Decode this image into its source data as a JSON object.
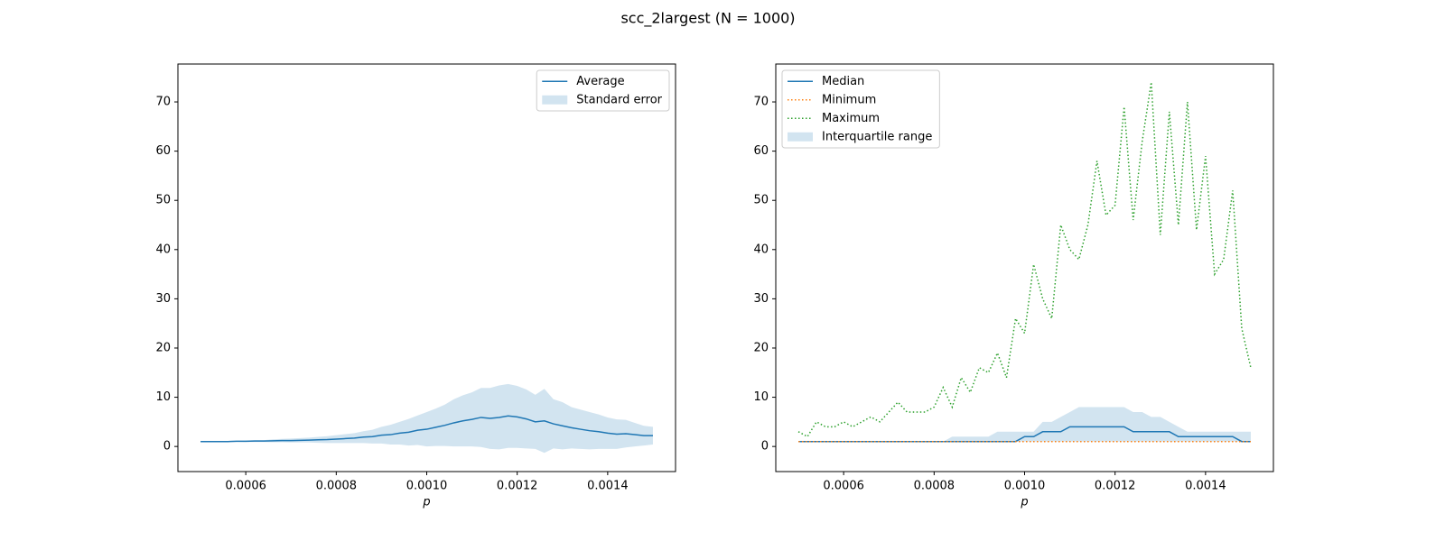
{
  "title": "scc_2largest (N = 1000)",
  "chart_data": [
    {
      "type": "line",
      "xlabel": "p",
      "x": [
        0.0005,
        0.00052,
        0.00054,
        0.00056,
        0.00058,
        0.0006,
        0.00062,
        0.00064,
        0.00066,
        0.00068,
        0.0007,
        0.00072,
        0.00074,
        0.00076,
        0.00078,
        0.0008,
        0.00082,
        0.00084,
        0.00086,
        0.00088,
        0.0009,
        0.00092,
        0.00094,
        0.00096,
        0.00098,
        0.001,
        0.00102,
        0.00104,
        0.00106,
        0.00108,
        0.0011,
        0.00112,
        0.00114,
        0.00116,
        0.00118,
        0.0012,
        0.00122,
        0.00124,
        0.00126,
        0.00128,
        0.0013,
        0.00132,
        0.00134,
        0.00136,
        0.00138,
        0.0014,
        0.00142,
        0.00144,
        0.00146,
        0.00148,
        0.0015
      ],
      "xlim": [
        0.00045,
        0.00155
      ],
      "xticks": [
        0.0006,
        0.0008,
        {
          "value": 0.001,
          "label": "0.0010"
        },
        0.0012,
        0.0014
      ],
      "ylim": [
        -5.1,
        77.7
      ],
      "yticks": [
        0,
        10,
        20,
        30,
        40,
        50,
        60,
        70
      ],
      "legend": "upper right",
      "series": [
        {
          "name": "Average",
          "color": "#1f77b4",
          "style": "solid",
          "values": [
            1.0,
            1.0,
            1.0,
            1.0,
            1.05,
            1.05,
            1.1,
            1.1,
            1.15,
            1.2,
            1.2,
            1.25,
            1.3,
            1.35,
            1.4,
            1.5,
            1.6,
            1.7,
            1.9,
            2.0,
            2.3,
            2.4,
            2.7,
            2.9,
            3.3,
            3.5,
            3.9,
            4.3,
            4.8,
            5.2,
            5.5,
            5.9,
            5.7,
            5.9,
            6.2,
            6.0,
            5.6,
            5.0,
            5.2,
            4.6,
            4.2,
            3.8,
            3.5,
            3.2,
            3.0,
            2.7,
            2.5,
            2.6,
            2.4,
            2.2,
            2.2
          ]
        }
      ],
      "bands": [
        {
          "name": "Standard error",
          "color": "#1f77b4",
          "lower": [
            0.95,
            0.95,
            0.95,
            0.9,
            0.95,
            0.9,
            0.9,
            0.9,
            0.85,
            0.85,
            0.8,
            0.8,
            0.8,
            0.75,
            0.7,
            0.7,
            0.7,
            0.7,
            0.7,
            0.6,
            0.6,
            0.4,
            0.4,
            0.2,
            0.3,
            0.0,
            0.1,
            0.1,
            0.0,
            0.0,
            0.0,
            -0.1,
            -0.5,
            -0.6,
            -0.3,
            -0.3,
            -0.4,
            -0.5,
            -1.3,
            -0.4,
            -0.6,
            -0.4,
            -0.5,
            -0.6,
            -0.5,
            -0.5,
            -0.5,
            -0.2,
            0.0,
            0.2,
            0.4
          ],
          "upper": [
            1.05,
            1.05,
            1.05,
            1.1,
            1.15,
            1.2,
            1.3,
            1.3,
            1.45,
            1.55,
            1.6,
            1.7,
            1.8,
            1.95,
            2.1,
            2.3,
            2.5,
            2.7,
            3.1,
            3.4,
            4.0,
            4.4,
            5.0,
            5.6,
            6.3,
            7.0,
            7.7,
            8.5,
            9.6,
            10.4,
            11.0,
            11.9,
            11.9,
            12.4,
            12.7,
            12.3,
            11.6,
            10.5,
            11.7,
            9.6,
            9.0,
            8.0,
            7.5,
            7.0,
            6.5,
            5.9,
            5.5,
            5.4,
            4.8,
            4.2,
            4.0
          ]
        }
      ]
    },
    {
      "type": "line",
      "xlabel": "p",
      "x": [
        0.0005,
        0.00052,
        0.00054,
        0.00056,
        0.00058,
        0.0006,
        0.00062,
        0.00064,
        0.00066,
        0.00068,
        0.0007,
        0.00072,
        0.00074,
        0.00076,
        0.00078,
        0.0008,
        0.00082,
        0.00084,
        0.00086,
        0.00088,
        0.0009,
        0.00092,
        0.00094,
        0.00096,
        0.00098,
        0.001,
        0.00102,
        0.00104,
        0.00106,
        0.00108,
        0.0011,
        0.00112,
        0.00114,
        0.00116,
        0.00118,
        0.0012,
        0.00122,
        0.00124,
        0.00126,
        0.00128,
        0.0013,
        0.00132,
        0.00134,
        0.00136,
        0.00138,
        0.0014,
        0.00142,
        0.00144,
        0.00146,
        0.00148,
        0.0015
      ],
      "xlim": [
        0.00045,
        0.00155
      ],
      "xticks": [
        0.0006,
        0.0008,
        {
          "value": 0.001,
          "label": "0.0010"
        },
        0.0012,
        0.0014
      ],
      "ylim": [
        -5.1,
        77.7
      ],
      "yticks": [
        0,
        10,
        20,
        30,
        40,
        50,
        60,
        70
      ],
      "legend": "upper left",
      "series": [
        {
          "name": "Median",
          "color": "#1f77b4",
          "style": "solid",
          "values": [
            1,
            1,
            1,
            1,
            1,
            1,
            1,
            1,
            1,
            1,
            1,
            1,
            1,
            1,
            1,
            1,
            1,
            1,
            1,
            1,
            1,
            1,
            1,
            1,
            1,
            2,
            2,
            3,
            3,
            3,
            4,
            4,
            4,
            4,
            4,
            4,
            4,
            3,
            3,
            3,
            3,
            3,
            2,
            2,
            2,
            2,
            2,
            2,
            2,
            1,
            1
          ]
        },
        {
          "name": "Minimum",
          "color": "#ff7f0e",
          "style": "dotted",
          "values": [
            1,
            1,
            1,
            1,
            1,
            1,
            1,
            1,
            1,
            1,
            1,
            1,
            1,
            1,
            1,
            1,
            1,
            1,
            1,
            1,
            1,
            1,
            1,
            1,
            1,
            1,
            1,
            1,
            1,
            1,
            1,
            1,
            1,
            1,
            1,
            1,
            1,
            1,
            1,
            1,
            1,
            1,
            1,
            1,
            1,
            1,
            1,
            1,
            1,
            1,
            1
          ]
        },
        {
          "name": "Maximum",
          "color": "#2ca02c",
          "style": "dotted",
          "values": [
            3,
            2,
            5,
            4,
            4,
            5,
            4,
            5,
            6,
            5,
            7,
            9,
            7,
            7,
            7,
            8,
            12,
            8,
            14,
            11,
            16,
            15,
            19,
            14,
            26,
            23,
            37,
            30,
            26,
            45,
            40,
            38,
            45,
            58,
            47,
            49,
            69,
            46,
            62,
            74,
            43,
            68,
            45,
            70,
            44,
            59,
            35,
            38,
            52,
            24,
            16
          ]
        }
      ],
      "bands": [
        {
          "name": "Interquartile range",
          "color": "#1f77b4",
          "lower": [
            1,
            1,
            1,
            1,
            1,
            1,
            1,
            1,
            1,
            1,
            1,
            1,
            1,
            1,
            1,
            1,
            1,
            1,
            1,
            1,
            1,
            1,
            1,
            1,
            1,
            1,
            1,
            1,
            1,
            1,
            1,
            1,
            1,
            1,
            1,
            1,
            1,
            1,
            1,
            1,
            1,
            1,
            1,
            1,
            1,
            1,
            1,
            1,
            1,
            1,
            1
          ],
          "upper": [
            1,
            1,
            1,
            1,
            1,
            1,
            1,
            1,
            1,
            1,
            1,
            1,
            1,
            1,
            1,
            1,
            1,
            2,
            2,
            2,
            2,
            2,
            3,
            3,
            3,
            3,
            3,
            5,
            5,
            6,
            7,
            8,
            8,
            8,
            8,
            8,
            8,
            7,
            7,
            6,
            6,
            5,
            4,
            3,
            3,
            3,
            3,
            3,
            3,
            3,
            3
          ]
        }
      ]
    }
  ]
}
